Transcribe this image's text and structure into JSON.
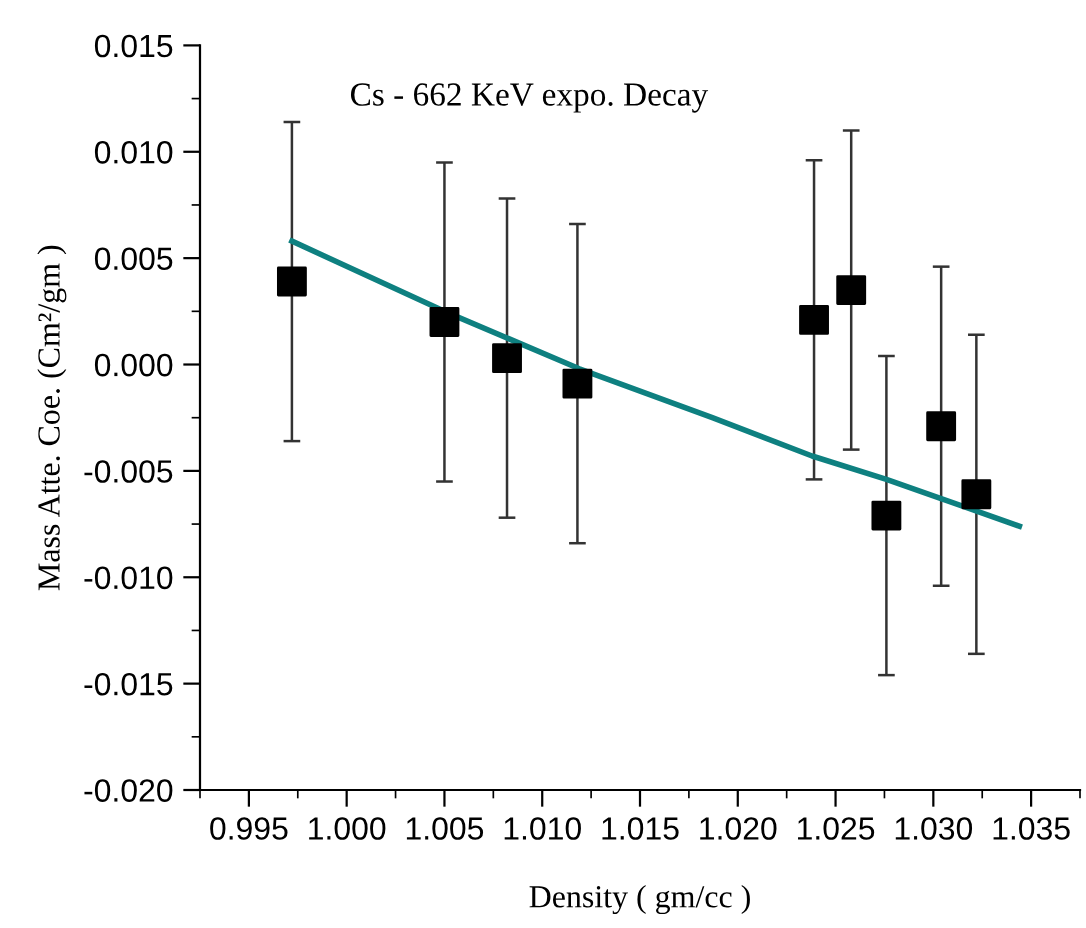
{
  "chart_data": {
    "type": "scatter",
    "title": "Cs - 662 KeV expo. Decay",
    "xlabel": "Density ( gm/cc )",
    "ylabel": "Mass Atte. Coe. (Cm²/gm )",
    "xlim": [
      0.9925,
      1.0375
    ],
    "xticks": [
      0.995,
      {
        "value": 1.0,
        "label": "1.000"
      },
      1.005,
      {
        "value": 1.01,
        "label": "1.010"
      },
      1.015,
      {
        "value": 1.02,
        "label": "1.020"
      },
      1.025,
      {
        "value": 1.03,
        "label": "1.030"
      },
      1.035
    ],
    "ylim": [
      -0.02,
      0.015
    ],
    "yticks": [
      {
        "value": -0.02,
        "label": "-0.020"
      },
      {
        "value": -0.015,
        "label": "-0.015"
      },
      {
        "value": -0.01,
        "label": "-0.010"
      },
      {
        "value": -0.005,
        "label": "-0.005"
      },
      {
        "value": 0,
        "label": "0.000"
      },
      0.005,
      {
        "value": 0.01,
        "label": "0.010"
      },
      0.015
    ],
    "grid": false,
    "legend": false,
    "series": [
      {
        "color": "#000000",
        "marker": "square",
        "x": [
          0.9972,
          1.005,
          1.0082,
          1.0118,
          1.0239,
          1.0258,
          1.0276,
          1.0304,
          1.0322
        ],
        "values": [
          0.0039,
          0.002,
          0.0003,
          -0.0009,
          0.0021,
          0.0035,
          -0.0071,
          -0.0029,
          -0.0061
        ],
        "errors": [
          0.0075,
          0.0075,
          0.0075,
          0.0075,
          0.0075,
          0.0075,
          0.0075,
          0.0075,
          0.0075
        ]
      },
      {
        "type": "line",
        "color": "#0e8080",
        "marker": "none",
        "line_style": "solid",
        "x": [
          0.9972,
          1.005,
          1.0119,
          1.0187,
          1.0238,
          1.0276,
          1.0304,
          1.0344
        ],
        "values": [
          0.0058,
          0.0025,
          -0.0002,
          -0.0025,
          -0.0043,
          -0.0054,
          -0.0063,
          -0.0076
        ]
      }
    ]
  }
}
